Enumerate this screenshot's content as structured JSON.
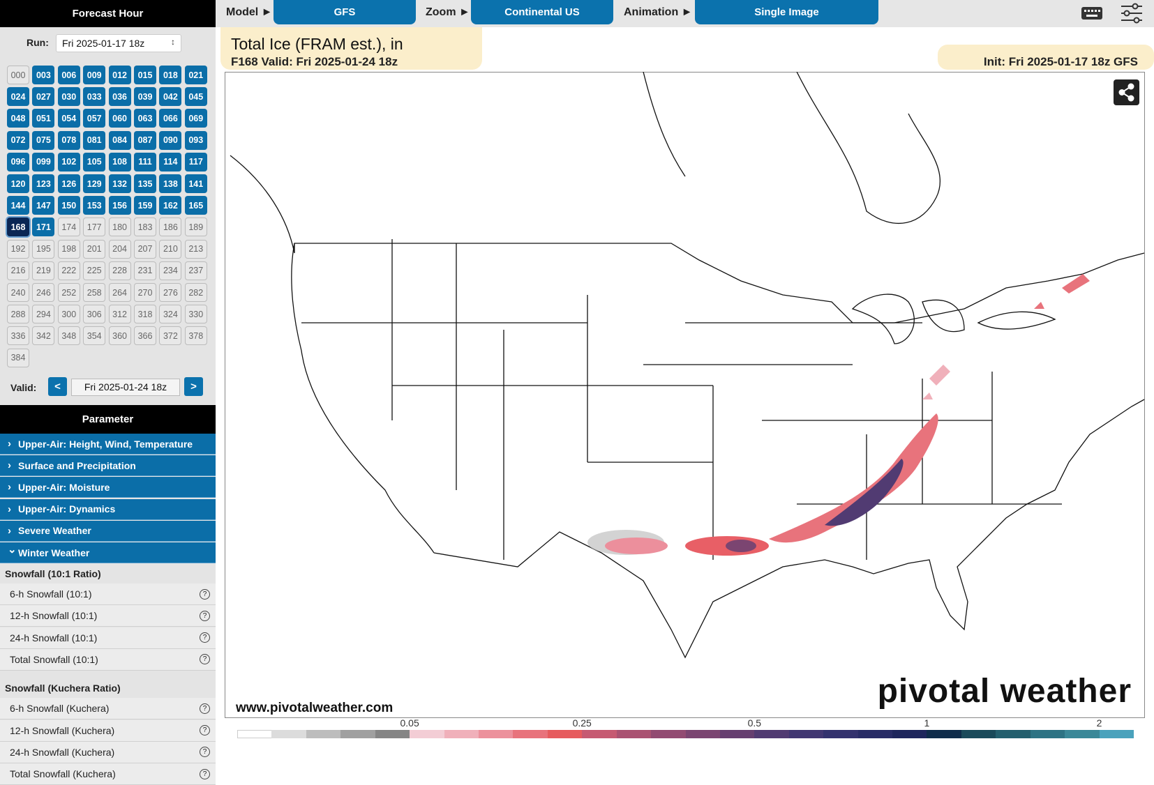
{
  "sidebar": {
    "forecast_hour_title": "Forecast Hour",
    "run_label": "Run:",
    "run_value": "Fri 2025-01-17 18z",
    "hours": [
      "000",
      "003",
      "006",
      "009",
      "012",
      "015",
      "018",
      "021",
      "024",
      "027",
      "030",
      "033",
      "036",
      "039",
      "042",
      "045",
      "048",
      "051",
      "054",
      "057",
      "060",
      "063",
      "066",
      "069",
      "072",
      "075",
      "078",
      "081",
      "084",
      "087",
      "090",
      "093",
      "096",
      "099",
      "102",
      "105",
      "108",
      "111",
      "114",
      "117",
      "120",
      "123",
      "126",
      "129",
      "132",
      "135",
      "138",
      "141",
      "144",
      "147",
      "150",
      "153",
      "156",
      "159",
      "162",
      "165",
      "168",
      "171",
      "174",
      "177",
      "180",
      "183",
      "186",
      "189",
      "192",
      "195",
      "198",
      "201",
      "204",
      "207",
      "210",
      "213",
      "216",
      "219",
      "222",
      "225",
      "228",
      "231",
      "234",
      "237",
      "240",
      "246",
      "252",
      "258",
      "264",
      "270",
      "276",
      "282",
      "288",
      "294",
      "300",
      "306",
      "312",
      "318",
      "324",
      "330",
      "336",
      "342",
      "348",
      "354",
      "360",
      "366",
      "372",
      "378",
      "384"
    ],
    "valid_label": "Valid:",
    "valid_prev": "<",
    "valid_value": "Fri 2025-01-24 18z",
    "valid_next": ">",
    "parameter_title": "Parameter",
    "categories": [
      "Upper-Air: Height, Wind, Temperature",
      "Surface and Precipitation",
      "Upper-Air: Moisture",
      "Upper-Air: Dynamics",
      "Severe Weather",
      "Winter Weather"
    ],
    "winter_groups": [
      {
        "title": "Snowfall (10:1 Ratio)",
        "items": [
          "6-h Snowfall (10:1)",
          "12-h Snowfall (10:1)",
          "24-h Snowfall (10:1)",
          "Total Snowfall (10:1)"
        ]
      },
      {
        "title": "Snowfall (Kuchera Ratio)",
        "items": [
          "6-h Snowfall (Kuchera)",
          "12-h Snowfall (Kuchera)",
          "24-h Snowfall (Kuchera)",
          "Total Snowfall (Kuchera)"
        ]
      }
    ]
  },
  "topbar": {
    "model_label": "Model ►",
    "model": "GFS",
    "zoom_label": "Zoom ►",
    "zoom": "Continental US",
    "animation_label": "Animation ►",
    "animation": "Single Image"
  },
  "map": {
    "title": "Total Ice (FRAM est.), in",
    "subtitle": "F168 Valid: Fri 2025-01-24 18z",
    "init": "Init: Fri 2025-01-17 18z GFS",
    "website": "www.pivotalweather.com",
    "logo": "pivotal weather",
    "colorbar": {
      "labels": [
        "0.05",
        "0.25",
        "0.5",
        "1",
        "2"
      ],
      "colors": [
        "#ffffff",
        "#dcdcdc",
        "#bdbdbd",
        "#a0a0a0",
        "#858585",
        "#f3cdd5",
        "#f0b0ba",
        "#ec919c",
        "#e8737c",
        "#e65b5e",
        "#c65a72",
        "#aa5272",
        "#924b72",
        "#7b4571",
        "#663f70",
        "#513b72",
        "#413772",
        "#33326e",
        "#282c66",
        "#1e265c",
        "#0f2c4a",
        "#1a4a5a",
        "#245f6e",
        "#2d7384",
        "#3a8898",
        "#4aa2bc"
      ]
    }
  }
}
